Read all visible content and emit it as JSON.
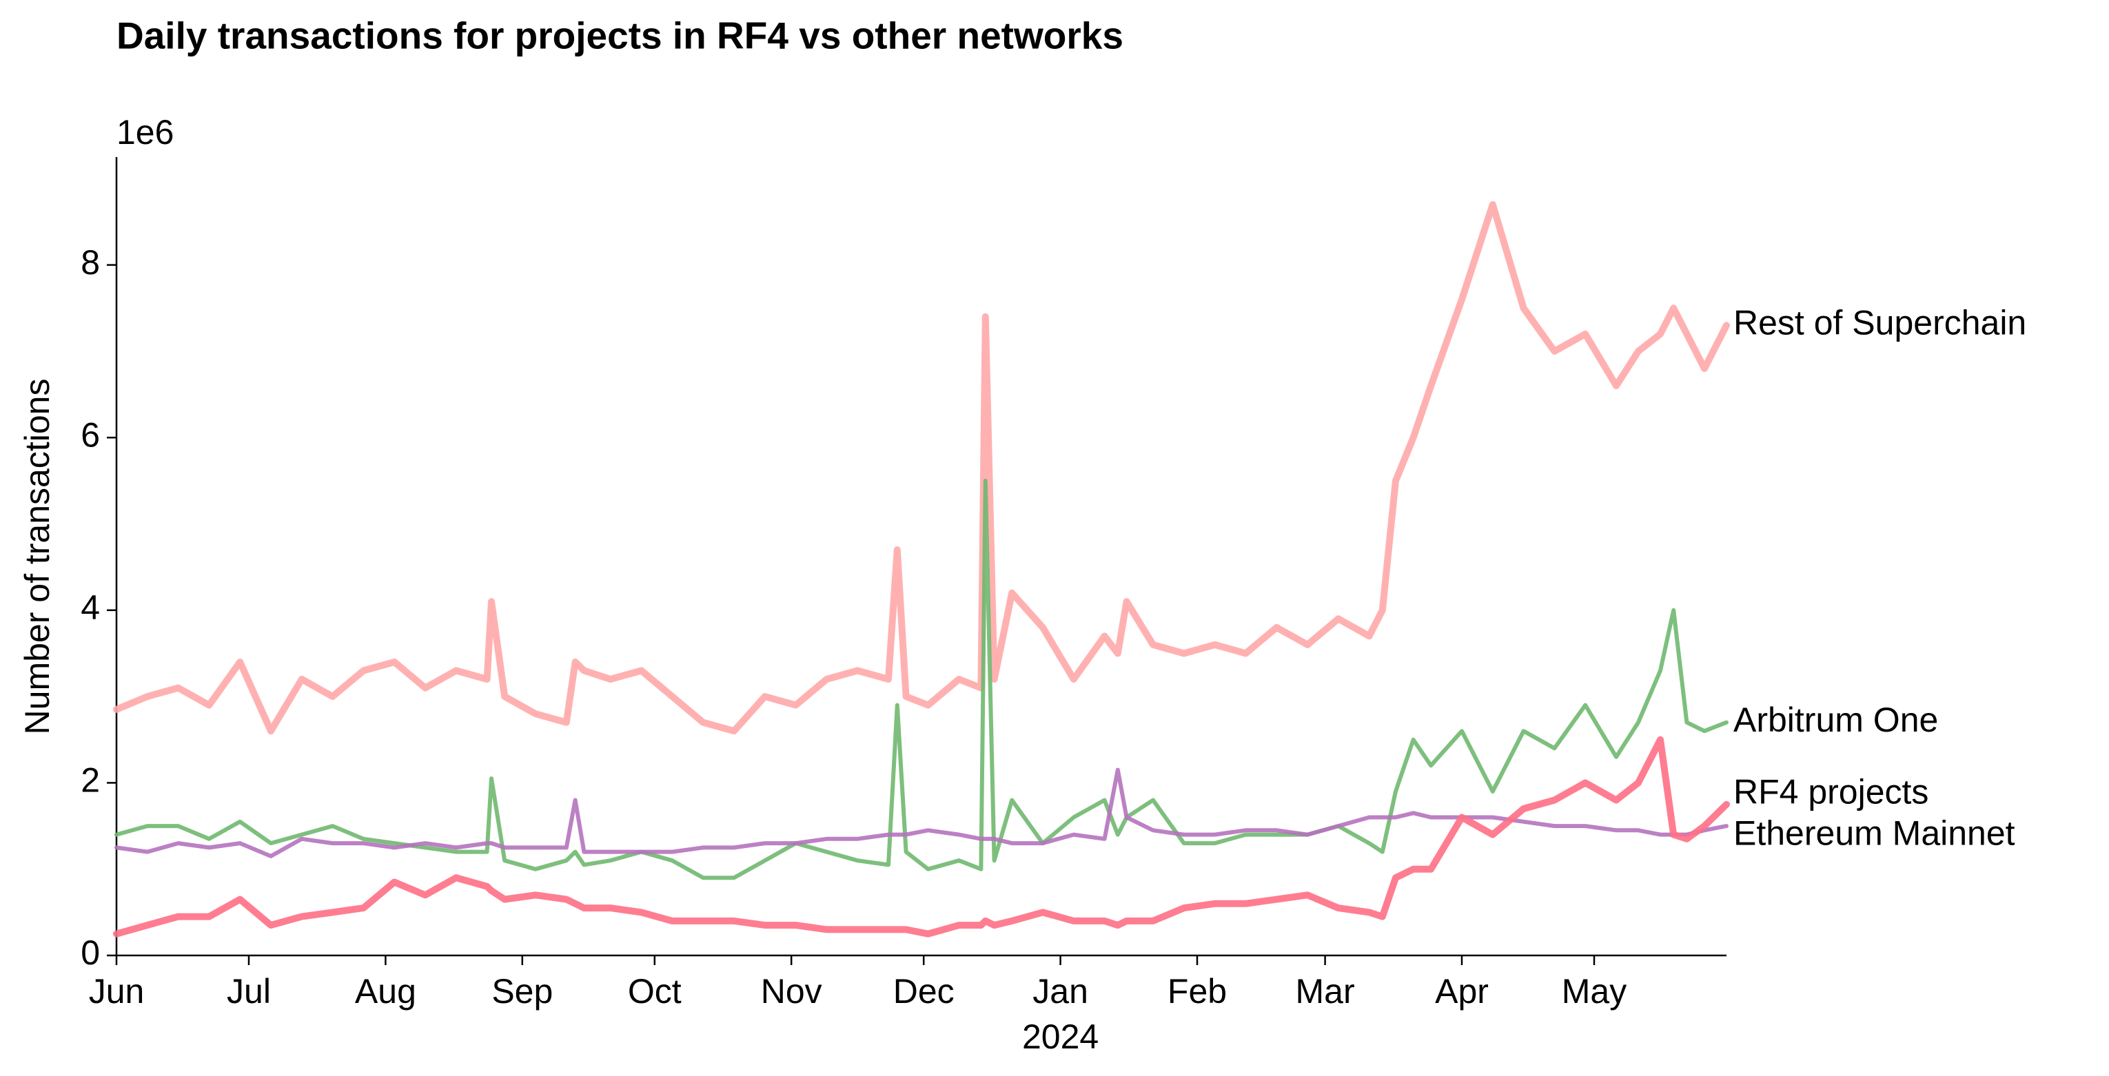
{
  "chart_data": {
    "type": "line",
    "title": "Daily transactions for projects in RF4 vs other networks",
    "ylabel": "Number of transactions",
    "y_offset_label": "1e6",
    "x_sublabel": {
      "value": 214,
      "label": "2024"
    },
    "x": [
      0,
      7,
      14,
      21,
      28,
      35,
      42,
      49,
      56,
      63,
      70,
      77,
      84,
      85,
      88,
      95,
      102,
      104,
      106,
      112,
      119,
      126,
      133,
      140,
      147,
      154,
      161,
      168,
      175,
      177,
      179,
      184,
      191,
      196,
      197,
      199,
      203,
      210,
      217,
      224,
      227,
      229,
      235,
      242,
      249,
      256,
      263,
      270,
      277,
      284,
      287,
      290,
      294,
      298,
      305,
      312,
      319,
      326,
      333,
      340,
      345,
      350,
      353,
      356,
      360,
      365
    ],
    "xlim": [
      0,
      365
    ],
    "xticks": [
      {
        "value": 0,
        "label": "Jun"
      },
      {
        "value": 30,
        "label": "Jul"
      },
      {
        "value": 61,
        "label": "Aug"
      },
      {
        "value": 92,
        "label": "Sep"
      },
      {
        "value": 122,
        "label": "Oct"
      },
      {
        "value": 153,
        "label": "Nov"
      },
      {
        "value": 183,
        "label": "Dec"
      },
      {
        "value": 214,
        "label": "Jan"
      },
      {
        "value": 245,
        "label": "Feb"
      },
      {
        "value": 274,
        "label": "Mar"
      },
      {
        "value": 305,
        "label": "Apr"
      },
      {
        "value": 335,
        "label": "May"
      }
    ],
    "ylim": [
      0,
      9.25
    ],
    "yticks": [
      0,
      2,
      4,
      6,
      8
    ],
    "grid": false,
    "series": [
      {
        "name": "Rest of Superchain",
        "color": "#ffa8a8",
        "width": 10,
        "values": [
          2.85,
          3.0,
          3.1,
          2.9,
          3.4,
          2.6,
          3.2,
          3.0,
          3.3,
          3.4,
          3.1,
          3.3,
          3.2,
          4.1,
          3.0,
          2.8,
          2.7,
          3.4,
          3.3,
          3.2,
          3.3,
          3.0,
          2.7,
          2.6,
          3.0,
          2.9,
          3.2,
          3.3,
          3.2,
          4.7,
          3.0,
          2.9,
          3.2,
          3.1,
          7.4,
          3.2,
          4.2,
          3.8,
          3.2,
          3.7,
          3.5,
          4.1,
          3.6,
          3.5,
          3.6,
          3.5,
          3.8,
          3.6,
          3.9,
          3.7,
          4.0,
          5.5,
          6.0,
          6.6,
          7.6,
          8.7,
          7.5,
          7.0,
          7.2,
          6.6,
          7.0,
          7.2,
          7.5,
          7.2,
          6.8,
          7.3
        ]
      },
      {
        "name": "Arbitrum One",
        "color": "#6fb86f",
        "width": 6,
        "values": [
          1.4,
          1.5,
          1.5,
          1.35,
          1.55,
          1.3,
          1.4,
          1.5,
          1.35,
          1.3,
          1.25,
          1.2,
          1.2,
          2.05,
          1.1,
          1.0,
          1.1,
          1.2,
          1.05,
          1.1,
          1.2,
          1.1,
          0.9,
          0.9,
          1.1,
          1.3,
          1.2,
          1.1,
          1.05,
          2.9,
          1.2,
          1.0,
          1.1,
          1.0,
          5.5,
          1.1,
          1.8,
          1.3,
          1.6,
          1.8,
          1.4,
          1.6,
          1.8,
          1.3,
          1.3,
          1.4,
          1.4,
          1.4,
          1.5,
          1.3,
          1.2,
          1.9,
          2.5,
          2.2,
          2.6,
          1.9,
          2.6,
          2.4,
          2.9,
          2.3,
          2.7,
          3.3,
          4.0,
          2.7,
          2.6,
          2.7
        ]
      },
      {
        "name": "Ethereum Mainnet",
        "color": "#b572be",
        "width": 6,
        "values": [
          1.25,
          1.2,
          1.3,
          1.25,
          1.3,
          1.15,
          1.35,
          1.3,
          1.3,
          1.25,
          1.3,
          1.25,
          1.3,
          1.3,
          1.25,
          1.25,
          1.25,
          1.8,
          1.2,
          1.2,
          1.2,
          1.2,
          1.25,
          1.25,
          1.3,
          1.3,
          1.35,
          1.35,
          1.4,
          1.4,
          1.4,
          1.45,
          1.4,
          1.35,
          1.35,
          1.35,
          1.3,
          1.3,
          1.4,
          1.35,
          2.15,
          1.6,
          1.45,
          1.4,
          1.4,
          1.45,
          1.45,
          1.4,
          1.5,
          1.6,
          1.6,
          1.6,
          1.65,
          1.6,
          1.6,
          1.6,
          1.55,
          1.5,
          1.5,
          1.45,
          1.45,
          1.4,
          1.4,
          1.4,
          1.45,
          1.5
        ]
      },
      {
        "name": "RF4 projects",
        "color": "#ff6f85",
        "width": 10,
        "values": [
          0.25,
          0.35,
          0.45,
          0.45,
          0.65,
          0.35,
          0.45,
          0.5,
          0.55,
          0.85,
          0.7,
          0.9,
          0.8,
          0.75,
          0.65,
          0.7,
          0.65,
          0.6,
          0.55,
          0.55,
          0.5,
          0.4,
          0.4,
          0.4,
          0.35,
          0.35,
          0.3,
          0.3,
          0.3,
          0.3,
          0.3,
          0.25,
          0.35,
          0.35,
          0.4,
          0.35,
          0.4,
          0.5,
          0.4,
          0.4,
          0.35,
          0.4,
          0.4,
          0.55,
          0.6,
          0.6,
          0.65,
          0.7,
          0.55,
          0.5,
          0.45,
          0.9,
          1.0,
          1.0,
          1.6,
          1.4,
          1.7,
          1.8,
          2.0,
          1.8,
          2.0,
          2.5,
          1.4,
          1.35,
          1.5,
          1.75
        ]
      }
    ]
  }
}
